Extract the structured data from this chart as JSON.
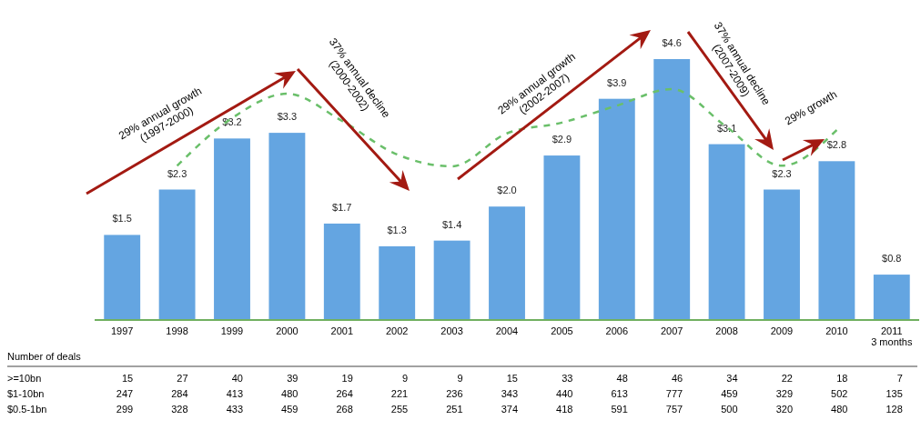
{
  "chart_data": {
    "type": "bar",
    "categories": [
      "1997",
      "1998",
      "1999",
      "2000",
      "2001",
      "2002",
      "2003",
      "2004",
      "2005",
      "2006",
      "2007",
      "2008",
      "2009",
      "2010",
      "2011\n3 months"
    ],
    "series": [
      {
        "color": "#64a5e1",
        "values": [
          1.5,
          2.3,
          3.2,
          3.3,
          1.7,
          1.3,
          1.4,
          2.0,
          2.9,
          3.9,
          4.6,
          3.1,
          2.3,
          2.8,
          0.8
        ],
        "value_labels": [
          "$1.5",
          "$2.3",
          "$3.2",
          "$3.3",
          "$1.7",
          "$1.3",
          "$1.4",
          "$2.0",
          "$2.9",
          "$3.9",
          "$4.6",
          "$3.1",
          "$2.3",
          "$2.8",
          "$0.8"
        ]
      },
      {
        "type": "line",
        "color": "#6abf6a",
        "values": [
          null,
          2.72,
          3.56,
          3.99,
          3.51,
          2.92,
          2.71,
          3.29,
          3.48,
          3.78,
          4.07,
          3.4,
          2.72,
          3.35,
          null
        ]
      }
    ],
    "line_style": "dashed",
    "annotations": [
      "29% annual growth\n(1997-2000)",
      "37% annual decline\n(2000-2002)",
      "29% annual growth\n(2002-2007)",
      "37% annual decline\n(2007-2009)",
      "29% growth",
      "Number of deals",
      ">=10bn 15 27 40 39 19 9 9 15 33 48 46 34 22 18 7",
      "$1-10bn 247 284 413 480 264 221 236 343 440 613 777 459 329 502 135",
      "$0.5-1bn 299 328 433 459 268 255 251 374 418 591 757 500 320 480 128"
    ]
  }
}
